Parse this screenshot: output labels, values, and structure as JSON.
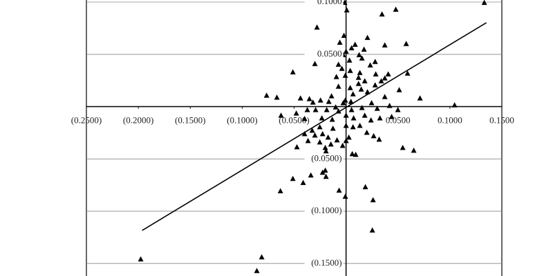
{
  "chart_data": {
    "type": "scatter",
    "color": "#000000",
    "xlim": [
      -0.25,
      0.15
    ],
    "ylim": [
      -0.162,
      0.102
    ],
    "xticks": [
      {
        "value": -0.25,
        "label": "(0.2500)"
      },
      {
        "value": -0.2,
        "label": "(0.2000)"
      },
      {
        "value": -0.15,
        "label": "(0.1500)"
      },
      {
        "value": -0.1,
        "label": "(0.1000)"
      },
      {
        "value": -0.05,
        "label": "(0.0500)"
      },
      {
        "value": 0.05,
        "label": "0.0500"
      },
      {
        "value": 0.1,
        "label": "0.1000"
      },
      {
        "value": 0.15,
        "label": "0.1500"
      }
    ],
    "yticks": [
      {
        "value": 0.1,
        "label": "0.1000"
      },
      {
        "value": 0.05,
        "label": "0.0500"
      },
      {
        "value": -0.05,
        "label": "(0.0500)"
      },
      {
        "value": -0.1,
        "label": "(0.1000)"
      },
      {
        "value": -0.15,
        "label": "(0.1500)"
      }
    ],
    "grid": true,
    "x": [
      0.1331,
      0.0479,
      0.0346,
      -0.0013,
      0.0007,
      -0.028,
      -0.006,
      0.0206,
      0.0579,
      0.0373,
      0,
      0.0053,
      0.0087,
      0.0126,
      0.0173,
      -0.0027,
      0.0033,
      0.0153,
      0.028,
      0.0233,
      -0.03,
      -0.0512,
      -0.004,
      0.004,
      0.0133,
      0.0286,
      0.0406,
      0.0592,
      -0.0007,
      -0.0093,
      0.018,
      0.012,
      0.0339,
      0.0373,
      0.028,
      0.0512,
      -0.0073,
      0.004,
      0.0146,
      0.0206,
      0.0067,
      -0.014,
      -0.0007,
      -0.0765,
      -0.0666,
      -0.0439,
      -0.0353,
      -0.0246,
      -0.0166,
      -0.0027,
      0.0047,
      0.0246,
      0.0373,
      0.0712,
      0.0153,
      0.03,
      0.0419,
      0.0499,
      0.1045,
      -0.01,
      -0.0073,
      0.0053,
      -0.0186,
      -0.0293,
      -0.0373,
      -0.0626,
      -0.0479,
      -0.0399,
      -0.0233,
      -0.0133,
      0,
      0.0073,
      0.018,
      0.024,
      0.0326,
      0.0439,
      0,
      0.0067,
      0.0133,
      -0.0126,
      -0.0253,
      -0.0326,
      -0.0399,
      -0.03,
      -0.0226,
      -0.0173,
      -0.0087,
      0,
      0.0027,
      0.02,
      0.0266,
      0.0319,
      -0.0033,
      -0.0146,
      -0.0253,
      -0.0473,
      -0.0366,
      -0.0193,
      -0.02,
      0.006,
      0.0093,
      -0.0106,
      -0.0246,
      -0.028,
      -0.02,
      -0.0226,
      -0.0339,
      -0.0193,
      -0.0512,
      -0.0413,
      -0.0632,
      -0.0067,
      0.0186,
      -0.0007,
      0.026,
      0.0253,
      -0.1977,
      -0.0812,
      -0.0859,
      0.0546,
      0.0652,
      -0.0319,
      -0.0073,
      -0.002,
      0.012
    ],
    "values": [
      0.0993,
      0.0928,
      0.0882,
      0.0993,
      0.0921,
      0.0757,
      0.0612,
      0.0658,
      0.0599,
      0.0586,
      0.0526,
      0.0559,
      0.0592,
      0.0493,
      0.0546,
      0.0493,
      0.0441,
      0.0461,
      0.0428,
      0.0395,
      0.0408,
      0.0329,
      0.0362,
      0.0342,
      0.0322,
      0.0309,
      0.0309,
      0.0316,
      0.0296,
      0.0283,
      0.0243,
      0.0217,
      0.0243,
      0.027,
      0.0204,
      0.0158,
      0.0191,
      0.0178,
      0.0164,
      0.0138,
      0.0118,
      0.0099,
      0.0059,
      0.0105,
      0.0086,
      0.0079,
      0.0072,
      0.0059,
      0.0046,
      0.0033,
      0.0046,
      0.0033,
      0.0092,
      0.0079,
      -0.0013,
      -0.002,
      0.0007,
      -0.0033,
      0.0013,
      -0.0007,
      -0.0046,
      -0.0033,
      -0.0033,
      -0.0033,
      -0.0033,
      -0.0086,
      -0.0066,
      -0.0118,
      -0.0112,
      -0.0125,
      -0.0086,
      -0.0112,
      -0.0086,
      -0.0132,
      -0.0112,
      -0.0099,
      -0.0184,
      -0.0197,
      -0.0184,
      -0.0211,
      -0.0197,
      -0.023,
      -0.0263,
      -0.0276,
      -0.0263,
      -0.0296,
      -0.0322,
      -0.0329,
      -0.0296,
      -0.025,
      -0.0283,
      -0.0316,
      -0.0375,
      -0.0362,
      -0.0342,
      -0.0388,
      -0.0329,
      -0.0428,
      -0.0395,
      -0.0454,
      -0.0461,
      -0.0507,
      -0.0493,
      -0.048,
      -0.0612,
      -0.0632,
      -0.0658,
      -0.0671,
      -0.0691,
      -0.073,
      -0.0809,
      -0.0803,
      -0.077,
      -0.0862,
      -0.0895,
      -0.1184,
      -0.1461,
      -0.1441,
      -0.1572,
      -0.0395,
      -0.0421,
      0.0039,
      0.0401,
      0.0678,
      0.0276
    ],
    "trend_line": {
      "x": [
        -0.1963,
        0.1351
      ],
      "y": [
        -0.1184,
        0.0803
      ]
    }
  }
}
